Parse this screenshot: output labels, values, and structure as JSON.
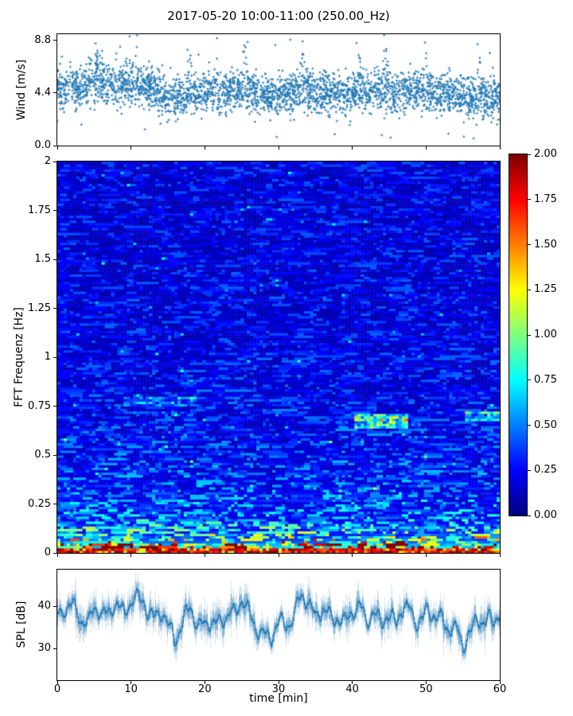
{
  "figure": {
    "title": "2017-05-20 10:00-11:00 (250.00_Hz)",
    "background_color": "#ffffff",
    "frame_color": "#000000",
    "accent_color": "#1f77b4"
  },
  "time_axis": {
    "label": "time [min]",
    "range": [
      0,
      60
    ],
    "ticks": [
      0,
      10,
      20,
      30,
      40,
      50,
      60
    ],
    "tick_labels": [
      "0",
      "10",
      "20",
      "30",
      "40",
      "50",
      "60"
    ]
  },
  "chart_data": [
    {
      "id": "wind",
      "type": "scatter",
      "ylabel": "Wind [m/s]",
      "xlim": [
        0,
        60
      ],
      "ylim": [
        0,
        9.33
      ],
      "yticks": [
        0,
        4.4,
        8.8
      ],
      "ytick_labels": [
        "0.0",
        "4.4",
        "8.8"
      ],
      "marker": "+",
      "marker_color": "#1f77b4",
      "n_points": 3200,
      "noise_std": 0.85,
      "gust_times": [
        5.5,
        10.5,
        18,
        21.5,
        25.5,
        33.5,
        41,
        44.5,
        50,
        53,
        57
      ],
      "mean_profile_per_min": [
        4.8,
        4.9,
        5.0,
        4.9,
        5.1,
        5.3,
        5.2,
        5.0,
        4.9,
        5.1,
        5.3,
        5.2,
        5.0,
        4.6,
        4.1,
        3.9,
        3.8,
        4.0,
        4.3,
        4.4,
        4.5,
        4.6,
        4.4,
        4.5,
        4.7,
        4.8,
        4.6,
        4.4,
        4.2,
        4.1,
        4.3,
        4.4,
        4.5,
        4.8,
        4.7,
        4.5,
        4.4,
        4.3,
        4.4,
        4.2,
        4.3,
        4.5,
        4.4,
        4.6,
        4.5,
        4.4,
        4.5,
        4.6,
        4.7,
        4.8,
        4.6,
        4.5,
        4.3,
        4.2,
        4.4,
        4.1,
        3.9,
        4.0,
        4.2,
        4.0,
        3.9
      ],
      "description": "Dense '+' marker scatter of wind speed, mean ~4.5 m/s, spread ~1-8.5 m/s over 60 min"
    },
    {
      "id": "spectrogram",
      "type": "heatmap",
      "ylabel": "FFT Frequenz [Hz]",
      "xlim": [
        0,
        60
      ],
      "ylim": [
        0,
        2
      ],
      "yticks": [
        0,
        0.25,
        0.5,
        0.75,
        1,
        1.25,
        1.5,
        1.75,
        2
      ],
      "ytick_labels": [
        "0",
        "0.25",
        "0.5",
        "0.75",
        "1",
        "1.25",
        "1.5",
        "1.75",
        "2"
      ],
      "colormap": "jet",
      "clim": [
        0,
        2
      ],
      "background_level": 0.22,
      "low_freq_intensity": {
        "amp": 1.9,
        "freq_scale_hz": 0.045
      },
      "mid_freq_intensity": {
        "amp": 0.35,
        "freq_scale_hz": 0.35
      },
      "features": [
        {
          "time_min": [
            9,
            19
          ],
          "freq_hz": [
            0.7,
            0.8
          ],
          "amp": 0.22,
          "label": "faint light-blue patch"
        },
        {
          "time_min": [
            40.5,
            47.5
          ],
          "freq_hz": [
            0.62,
            0.71
          ],
          "amp": 0.6,
          "label": "bright cyan-green streaks"
        },
        {
          "time_min": [
            43.5,
            45.5
          ],
          "freq_hz": [
            0.64,
            0.67
          ],
          "amp": 0.5,
          "label": "yellow-green hotspot"
        },
        {
          "time_min": [
            55.5,
            60
          ],
          "freq_hz": [
            0.67,
            0.74
          ],
          "amp": 0.45,
          "label": "cyan streak"
        }
      ],
      "description": "Jet-colormap spectrogram: values ~1.5-2 below 0.05 Hz (red/dark-red band at bottom), decaying to ~0.15-0.3 (dark blue with lighter streaks) above 0.3 Hz"
    },
    {
      "id": "spl",
      "type": "line",
      "ylabel": "SPL [dB]",
      "xlabel": "time [min]",
      "xlim": [
        0,
        60
      ],
      "ylim": [
        22.5,
        48.7
      ],
      "yticks": [
        30,
        40
      ],
      "ytick_labels": [
        "30",
        "40"
      ],
      "line_color": "#1f77b4",
      "noise_amp_db": 3.0,
      "mean_profile_per_min": [
        38,
        39,
        40,
        37,
        36,
        39,
        37,
        38,
        40,
        38,
        41,
        42,
        40,
        37,
        38,
        35,
        32,
        36,
        39,
        36,
        36,
        37,
        38,
        39,
        38,
        41,
        38,
        35,
        34,
        33,
        36,
        35,
        36,
        42,
        40,
        37,
        38,
        36,
        37,
        35,
        39,
        41,
        37,
        38,
        36,
        38,
        36,
        40,
        38,
        36,
        38,
        37,
        36,
        35,
        36,
        31,
        33,
        38,
        36,
        37,
        38
      ],
      "description": "Noisy sound-pressure-level trace oscillating between ~27 and ~47 dB around a ~36 dB mean"
    }
  ],
  "colorbar": {
    "colormap": "jet",
    "range": [
      0,
      2
    ],
    "tick_values": [
      0,
      0.25,
      0.5,
      0.75,
      1,
      1.25,
      1.5,
      1.75,
      2
    ],
    "tick_labels": [
      "0.00",
      "0.25",
      "0.50",
      "0.75",
      "1.00",
      "1.25",
      "1.50",
      "1.75",
      "2.00"
    ]
  }
}
